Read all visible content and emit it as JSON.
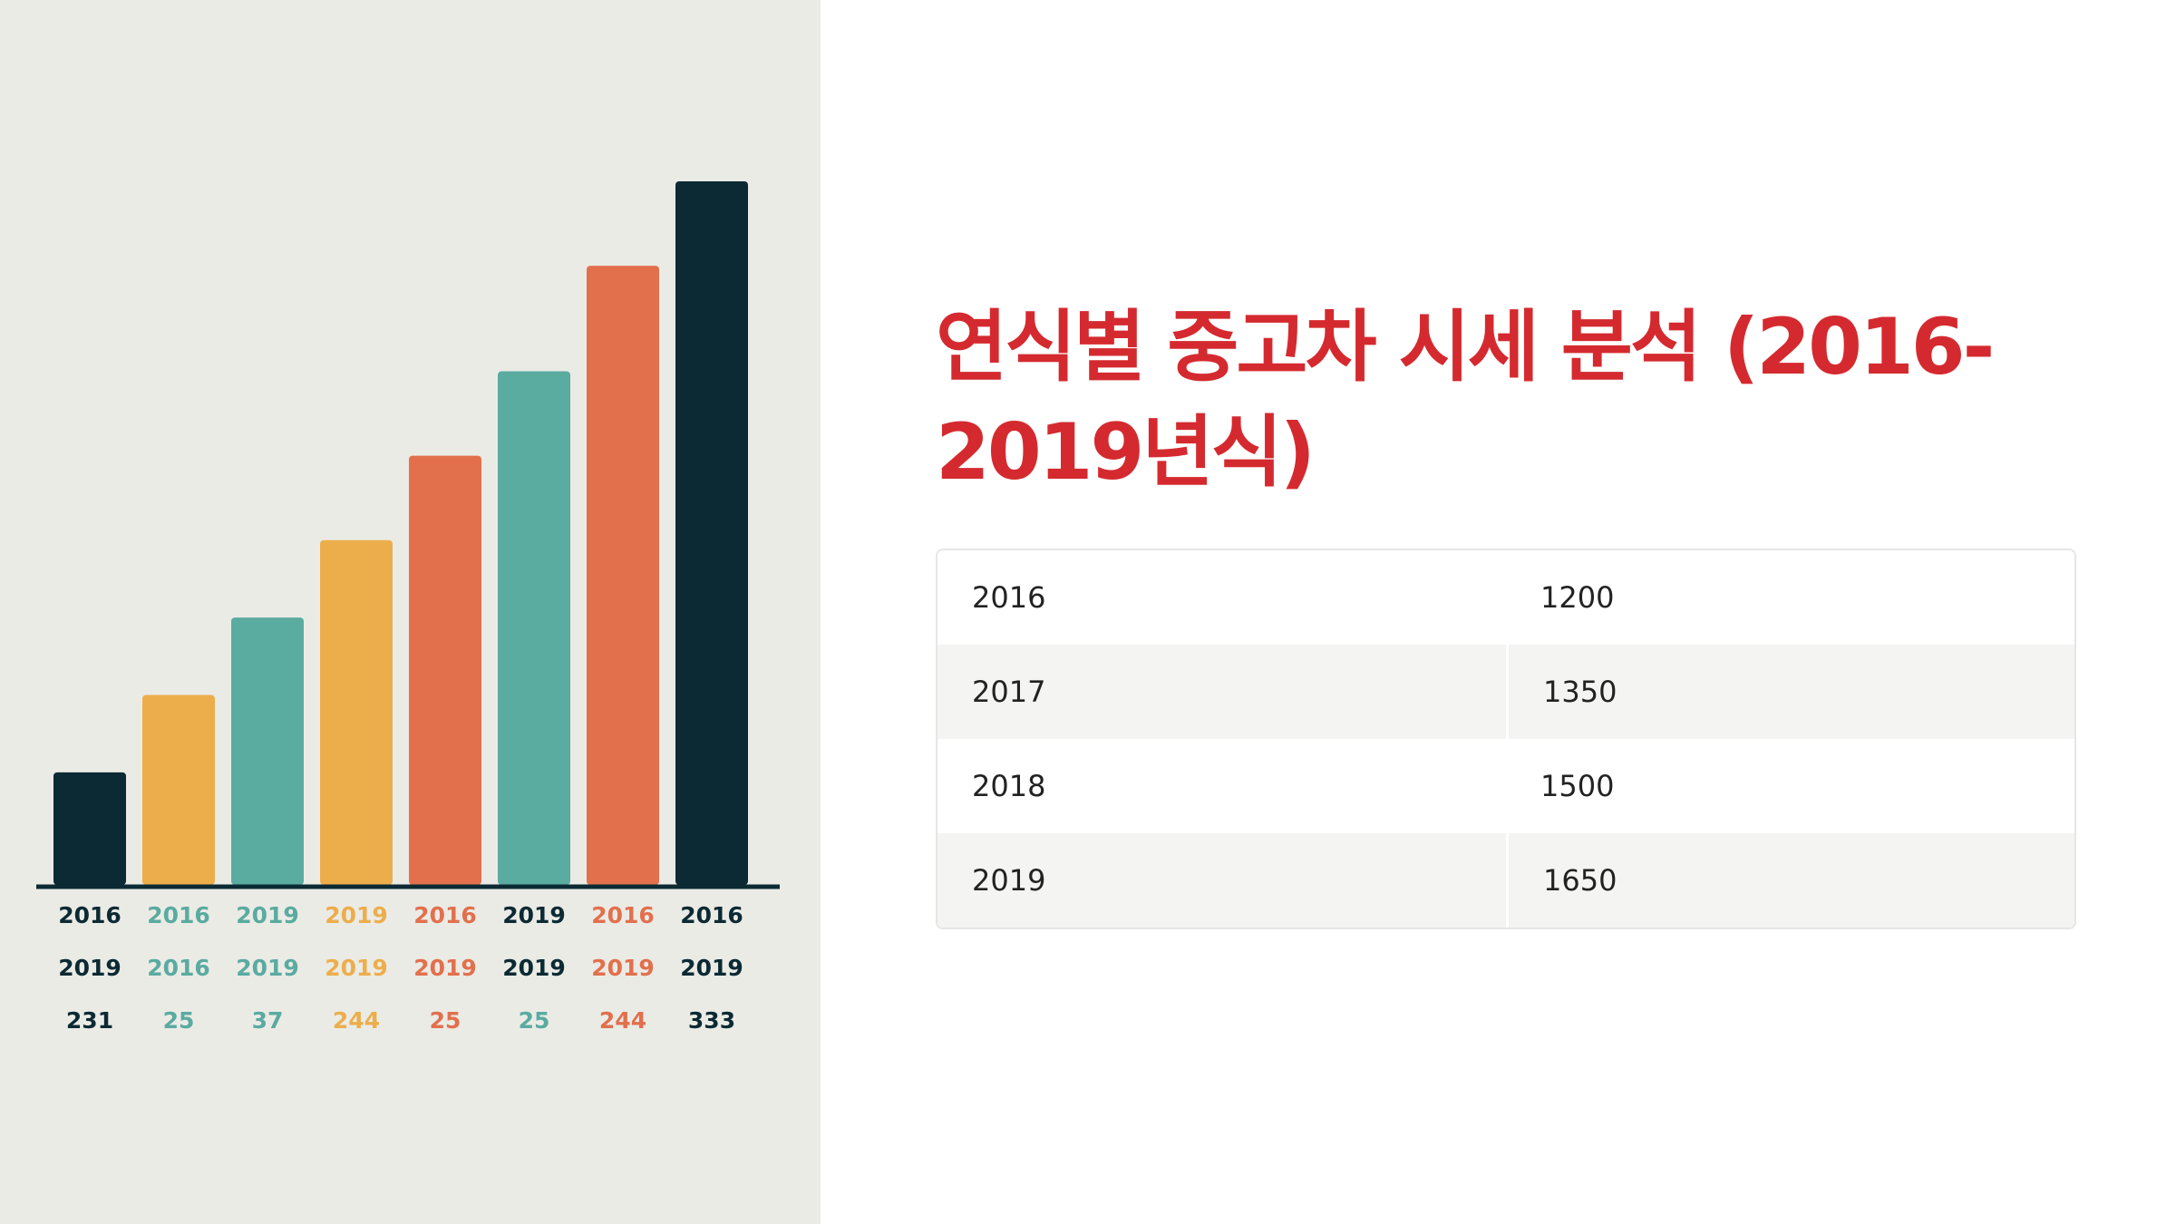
{
  "title": "연식별 중고차 시세 분석 (2016-2019년식)",
  "colors": {
    "title": "#d42a2f",
    "dark": "#0b2a33",
    "yellow": "#ecae4b",
    "teal": "#5aaba0",
    "orange": "#e2704d",
    "panel_bg": "#ebebe6"
  },
  "chart_data": {
    "type": "bar",
    "title": "",
    "xlabel": "",
    "ylabel": "",
    "ylim": [
      0,
      100
    ],
    "bars": [
      {
        "value": 16,
        "color": "#0b2a33",
        "labels": [
          "2016",
          "2019",
          "231"
        ]
      },
      {
        "value": 27,
        "color": "#ecae4b",
        "labels": [
          "2016",
          "2016",
          "25"
        ],
        "label_color": "#5aaba0"
      },
      {
        "value": 38,
        "color": "#5aaba0",
        "labels": [
          "2019",
          "2019",
          "37"
        ]
      },
      {
        "value": 49,
        "color": "#ecae4b",
        "labels": [
          "2019",
          "2019",
          "244"
        ]
      },
      {
        "value": 61,
        "color": "#e2704d",
        "labels": [
          "2016",
          "2019",
          "25"
        ]
      },
      {
        "value": 73,
        "color": "#5aaba0",
        "labels": [
          "2019",
          "2019",
          "25"
        ],
        "label_color": "#0b2a33",
        "last_label_color": "#5aaba0"
      },
      {
        "value": 88,
        "color": "#e2704d",
        "labels": [
          "2016",
          "2019",
          "244"
        ]
      },
      {
        "value": 100,
        "color": "#0b2a33",
        "labels": [
          "2016",
          "2019",
          "333"
        ]
      }
    ]
  },
  "table": {
    "rows": [
      {
        "year": "2016",
        "price": "1200"
      },
      {
        "year": "2017",
        "price": "1350"
      },
      {
        "year": "2018",
        "price": "1500"
      },
      {
        "year": "2019",
        "price": "1650"
      }
    ]
  }
}
